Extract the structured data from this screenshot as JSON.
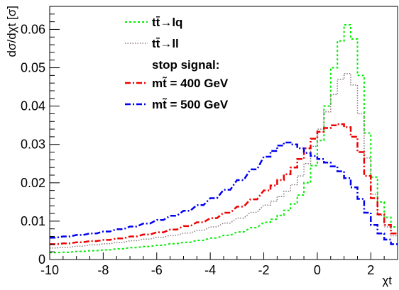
{
  "chart_data": {
    "type": "line",
    "style": "step-histogram",
    "xlabel": "χt",
    "ylabel": "dσ/dχt [σ]",
    "xlim": [
      -10,
      3
    ],
    "ylim": [
      0,
      0.066
    ],
    "x_ticks": [
      "-10",
      "-8",
      "-6",
      "-4",
      "-2",
      "0",
      "2"
    ],
    "y_ticks": [
      "0",
      "0.01",
      "0.02",
      "0.03",
      "0.04",
      "0.05",
      "0.06"
    ],
    "legend_title": "stop signal:",
    "legend_position": "top-center",
    "x": [
      -10.0,
      -9.5,
      -9.0,
      -8.5,
      -8.0,
      -7.5,
      -7.0,
      -6.5,
      -6.0,
      -5.5,
      -5.0,
      -4.5,
      -4.0,
      -3.5,
      -3.0,
      -2.5,
      -2.0,
      -1.75,
      -1.5,
      -1.25,
      -1.0,
      -0.75,
      -0.5,
      -0.25,
      0.0,
      0.25,
      0.5,
      0.75,
      1.0,
      1.25,
      1.5,
      1.75,
      2.0,
      2.25,
      2.5,
      2.75
    ],
    "bin_width": 0.25,
    "series": [
      {
        "name": "tt̄→lq",
        "color": "#00ee00",
        "dash": "3,3",
        "values": [
          0.0018,
          0.0019,
          0.0021,
          0.0023,
          0.0025,
          0.0028,
          0.0031,
          0.0034,
          0.0037,
          0.0041,
          0.0045,
          0.005,
          0.0056,
          0.0063,
          0.0072,
          0.0083,
          0.0097,
          0.0105,
          0.0115,
          0.0128,
          0.0145,
          0.0168,
          0.02,
          0.0245,
          0.031,
          0.04,
          0.05,
          0.057,
          0.0612,
          0.0575,
          0.048,
          0.033,
          0.0215,
          0.015,
          0.011,
          0.0085
        ]
      },
      {
        "name": "tt̄→ll",
        "color": "#887777",
        "dash": "1.5,2",
        "values": [
          0.003,
          0.0032,
          0.0035,
          0.0038,
          0.0041,
          0.0045,
          0.0049,
          0.0053,
          0.0058,
          0.0063,
          0.0069,
          0.0076,
          0.0085,
          0.0095,
          0.0108,
          0.0123,
          0.0142,
          0.0152,
          0.0164,
          0.0178,
          0.0195,
          0.0218,
          0.025,
          0.0295,
          0.034,
          0.0385,
          0.043,
          0.047,
          0.0485,
          0.0455,
          0.038,
          0.0265,
          0.017,
          0.0115,
          0.0085,
          0.0062
        ]
      },
      {
        "name": "mt̃ = 400 GeV",
        "color": "#ee0000",
        "dash": "8,3,2,3",
        "values": [
          0.004,
          0.0042,
          0.0045,
          0.0048,
          0.0051,
          0.0055,
          0.006,
          0.0065,
          0.0071,
          0.0078,
          0.0087,
          0.0097,
          0.0108,
          0.0122,
          0.0138,
          0.0157,
          0.018,
          0.0193,
          0.0207,
          0.0222,
          0.024,
          0.0262,
          0.029,
          0.0315,
          0.0333,
          0.0343,
          0.035,
          0.0353,
          0.0345,
          0.032,
          0.028,
          0.0218,
          0.016,
          0.0118,
          0.009,
          0.0068
        ]
      },
      {
        "name": "mt̃ = 500 GeV",
        "color": "#0000ee",
        "dash": "8,3,2,3",
        "values": [
          0.0057,
          0.006,
          0.0064,
          0.0068,
          0.0073,
          0.0079,
          0.0086,
          0.0094,
          0.0103,
          0.0114,
          0.0127,
          0.0142,
          0.016,
          0.0182,
          0.0207,
          0.0235,
          0.0268,
          0.0283,
          0.0297,
          0.0305,
          0.03,
          0.029,
          0.0278,
          0.027,
          0.0262,
          0.0253,
          0.0243,
          0.023,
          0.0212,
          0.0188,
          0.0158,
          0.0122,
          0.009,
          0.0068,
          0.0052,
          0.004
        ]
      }
    ]
  }
}
